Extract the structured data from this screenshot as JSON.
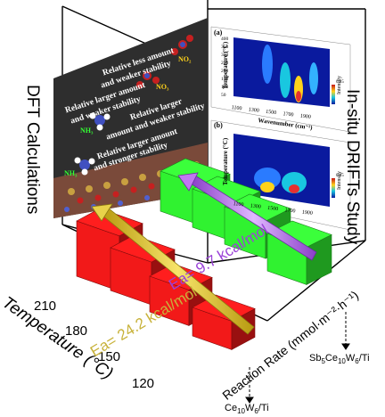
{
  "titles": {
    "left": "DFT Calculations",
    "right": "In-situ DRIFTs Study"
  },
  "axes": {
    "temperature": "Temperature (°C)",
    "reaction_rate": "Reaction Rate (mmol·m⁻²·h⁻¹)"
  },
  "ticks": {
    "temperature": [
      "210",
      "180",
      "150",
      "120"
    ]
  },
  "catalysts": {
    "low": {
      "base": "Ce",
      "sub1": "10",
      "mid": "W",
      "sub2": "6",
      "tail": "/Ti"
    },
    "high": {
      "pre": "Sb",
      "sub0": "5",
      "base": "Ce",
      "sub1": "10",
      "mid": "W",
      "sub2": "6",
      "tail": "/Ti"
    }
  },
  "activation_energies": {
    "low_label": "Ea=  24.2 kcal/mol",
    "high_label": "Ea=  9.7 kcal/mol",
    "low_value": 24.2,
    "high_value": 9.7,
    "unit": "kcal/mol"
  },
  "dft_panel": {
    "lines": [
      "Relative less amount",
      "and weaker stability",
      "Relative larger amount",
      "and weaker stability",
      "Relative larger",
      "amount and weaker stability",
      "Relative larger amount",
      "and stronger stability"
    ],
    "molecules": [
      "NO₂",
      "NO₃",
      "NH₃",
      "NH₃"
    ]
  },
  "drifts_panel": {
    "panel_a": "(a)",
    "panel_b": "(b)",
    "y_label": "Temperature (°C)",
    "x_label": "Wavenumber (cm⁻¹)",
    "colorbar_label": "Intensity",
    "y_ticks": [
      "400",
      "350",
      "300",
      "250",
      "200",
      "150",
      "100",
      "50"
    ],
    "x_ticks": [
      "1100",
      "1300",
      "1500",
      "1700",
      "1900"
    ],
    "colorbar_ticks": [
      "0.85",
      "0.0"
    ]
  },
  "chart_data": {
    "type": "bar",
    "series": [
      {
        "name": "Ce10W6/Ti",
        "color": "#ff1a1a"
      },
      {
        "name": "Sb5Ce10W6/Ti",
        "color": "#33ff33"
      }
    ],
    "categories_temperature": [
      "210",
      "180",
      "150",
      "120"
    ],
    "arrow_colors": {
      "low": "#e8d24a",
      "high": "#c277f2"
    }
  },
  "colors": {
    "red_bar": "#ff1a1a",
    "green_bar": "#33ff33",
    "yellow_arrow": "#e8d24a",
    "purple_arrow": "#c277f2",
    "dft_bg": "#2e2e2e"
  }
}
